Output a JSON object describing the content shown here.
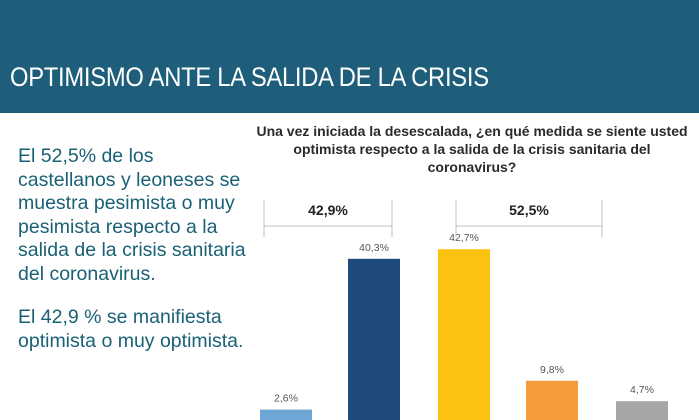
{
  "header": {
    "title": "OPTIMISMO ANTE LA SALIDA DE LA CRISIS"
  },
  "summary": {
    "paragraph1": "El 52,5% de los castellanos y leoneses se muestra pesimista o muy pesimista respecto a la salida de la crisis sanitaria del coronavirus.",
    "paragraph2": "El 42,9 % se manifiesta optimista o muy optimista."
  },
  "chart_data": {
    "type": "bar",
    "title": "Una vez iniciada la desescalada, ¿en qué medida se siente usted optimista respecto a la salida de la crisis sanitaria del coronavirus?",
    "values": [
      2.6,
      40.3,
      42.7,
      9.8,
      4.7
    ],
    "value_labels": [
      "2,6%",
      "40,3%",
      "42,7%",
      "9,8%",
      "4,7%"
    ],
    "colors": [
      "#6ea6d6",
      "#1f4a7c",
      "#fbc212",
      "#f79c3c",
      "#a6a6a6"
    ],
    "groups": [
      {
        "label": "42,9%",
        "bars": [
          0,
          1
        ]
      },
      {
        "label": "52,5%",
        "bars": [
          2,
          3
        ]
      }
    ],
    "ylim": [
      0,
      45
    ]
  }
}
